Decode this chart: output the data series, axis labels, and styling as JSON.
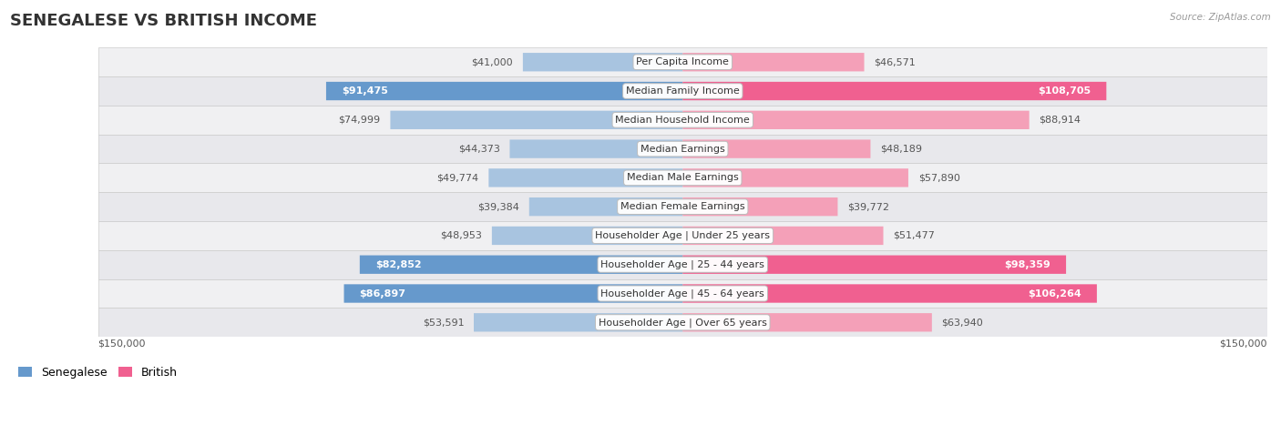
{
  "title": "SENEGALESE VS BRITISH INCOME",
  "source": "Source: ZipAtlas.com",
  "categories": [
    "Per Capita Income",
    "Median Family Income",
    "Median Household Income",
    "Median Earnings",
    "Median Male Earnings",
    "Median Female Earnings",
    "Householder Age | Under 25 years",
    "Householder Age | 25 - 44 years",
    "Householder Age | 45 - 64 years",
    "Householder Age | Over 65 years"
  ],
  "senegalese_values": [
    41000,
    91475,
    74999,
    44373,
    49774,
    39384,
    48953,
    82852,
    86897,
    53591
  ],
  "british_values": [
    46571,
    108705,
    88914,
    48189,
    57890,
    39772,
    51477,
    98359,
    106264,
    63940
  ],
  "senegalese_labels": [
    "$41,000",
    "$91,475",
    "$74,999",
    "$44,373",
    "$49,774",
    "$39,384",
    "$48,953",
    "$82,852",
    "$86,897",
    "$53,591"
  ],
  "british_labels": [
    "$46,571",
    "$108,705",
    "$88,914",
    "$48,189",
    "$57,890",
    "$39,772",
    "$51,477",
    "$98,359",
    "$106,264",
    "$63,940"
  ],
  "highlight_senegalese": [
    false,
    true,
    false,
    false,
    false,
    false,
    false,
    true,
    true,
    false
  ],
  "highlight_british": [
    false,
    true,
    false,
    false,
    false,
    false,
    false,
    true,
    true,
    false
  ],
  "max_value": 150000,
  "color_senegalese_normal": "#a8c4e0",
  "color_senegalese_highlight": "#6699cc",
  "color_british_normal": "#f4a0b8",
  "color_british_highlight": "#f06090",
  "row_bg_colors": [
    "#f0f0f2",
    "#e8e8ec"
  ],
  "legend_sene_color": "#6699cc",
  "legend_brit_color": "#f06090",
  "title_fontsize": 13,
  "label_fontsize": 8,
  "cat_fontsize": 8
}
